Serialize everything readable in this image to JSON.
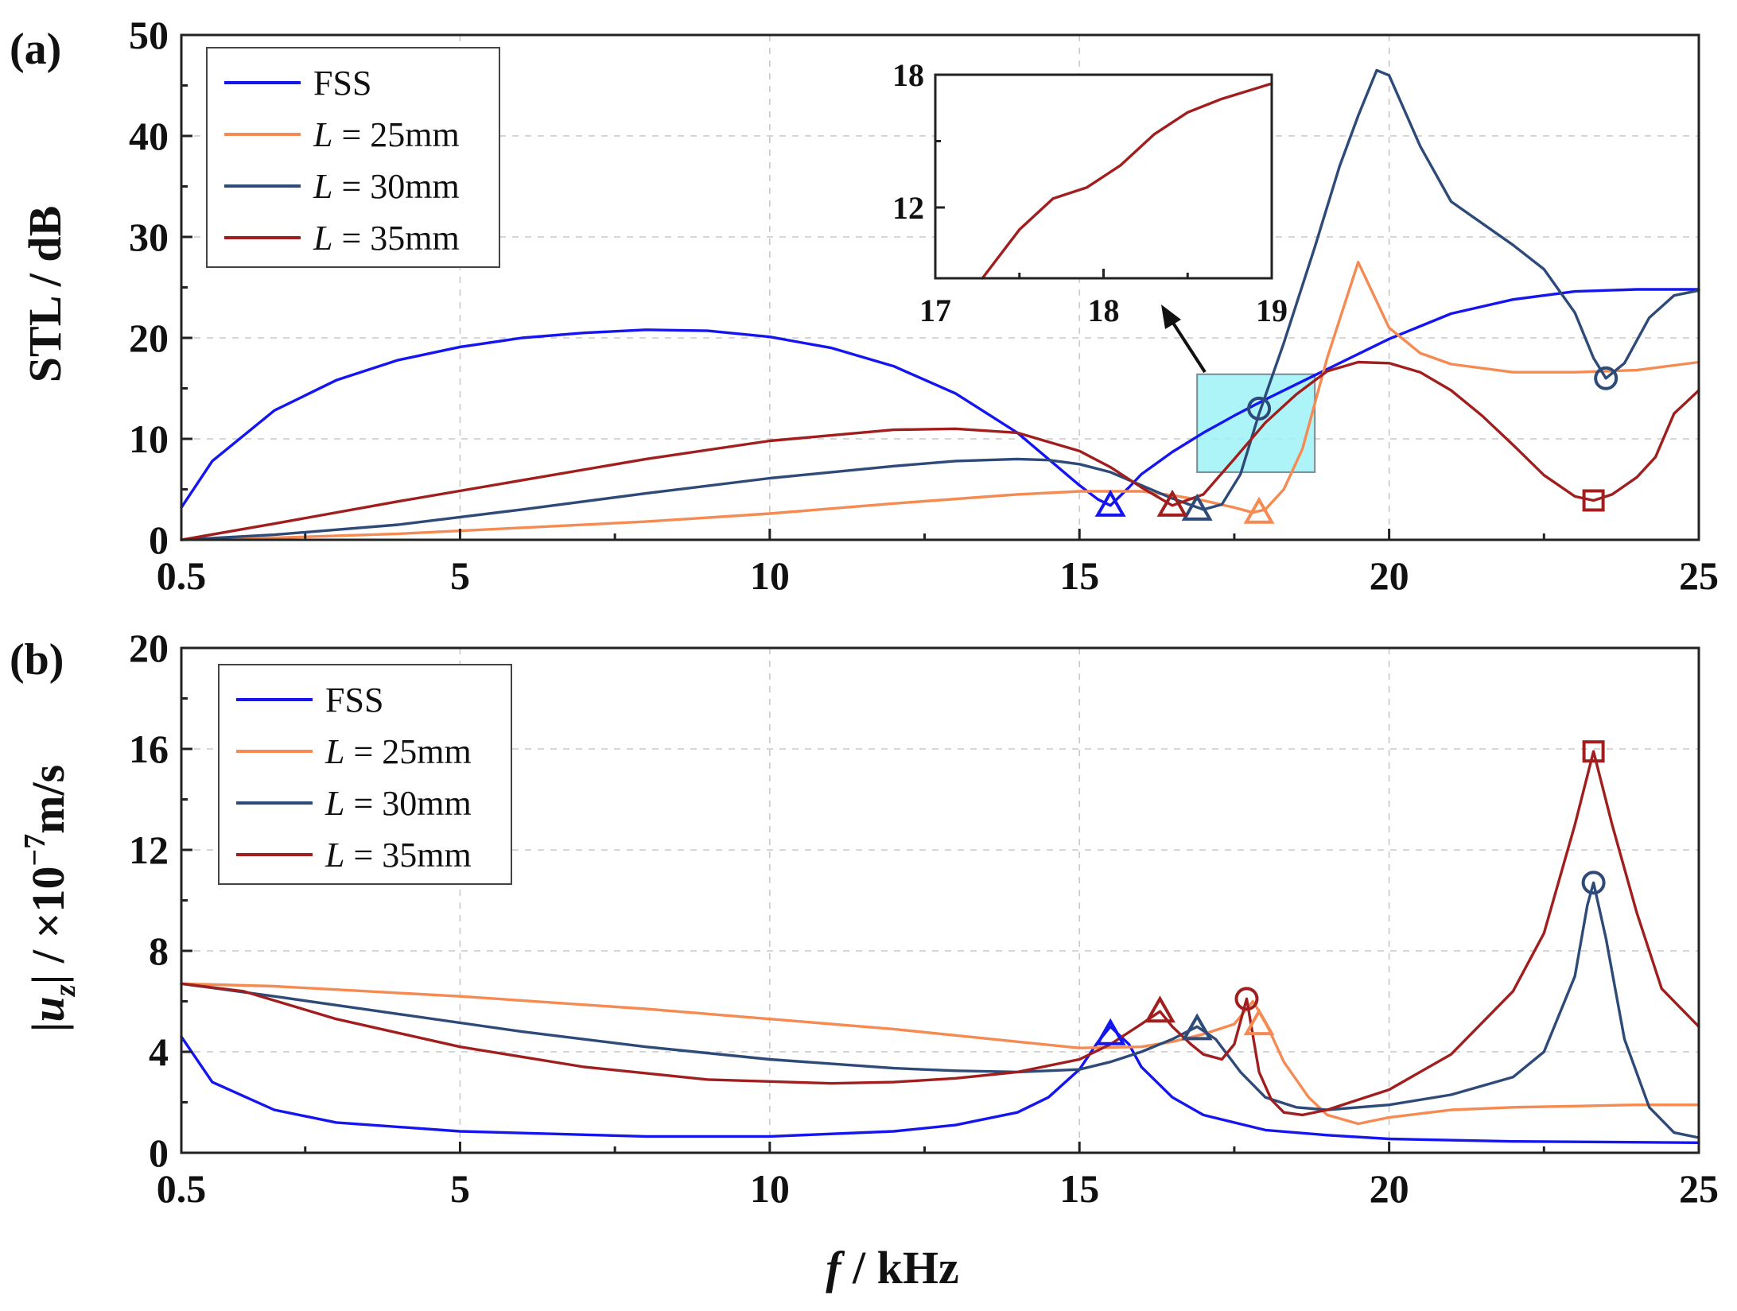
{
  "chart_data": [
    {
      "type": "line",
      "panel_label": "(a)",
      "xlabel": "f / kHz",
      "ylabel": "STL / dB",
      "xlim": [
        0.5,
        25
      ],
      "ylim": [
        0,
        50
      ],
      "x_ticks": [
        0.5,
        5,
        10,
        15,
        20,
        25
      ],
      "y_ticks": [
        0,
        10,
        20,
        30,
        40,
        50
      ],
      "grid": true,
      "legend_position": "top-left",
      "series": [
        {
          "name": "FSS",
          "legend_prefix": "",
          "legend_italic": "",
          "legend_suffix": "FSS",
          "color": "#1515f0",
          "x": [
            0.5,
            1,
            2,
            3,
            4,
            5,
            6,
            7,
            8,
            9,
            10,
            11,
            12,
            13,
            14,
            14.5,
            15,
            15.3,
            15.5,
            15.8,
            16,
            16.5,
            17,
            17.5,
            18,
            19,
            20,
            21,
            22,
            23,
            24,
            25
          ],
          "y": [
            3.2,
            7.8,
            12.8,
            15.8,
            17.8,
            19.1,
            20,
            20.5,
            20.8,
            20.7,
            20.1,
            19,
            17.2,
            14.5,
            10.6,
            8,
            5.4,
            4,
            3.4,
            5.2,
            6.5,
            8.7,
            10.6,
            12.3,
            13.9,
            16.9,
            19.9,
            22.4,
            23.8,
            24.6,
            24.8,
            24.8
          ],
          "markers": [
            {
              "x": 15.5,
              "y": 3.4,
              "shape": "triangle"
            }
          ]
        },
        {
          "name": "L = 25mm",
          "legend_prefix": "",
          "legend_italic": "L",
          "legend_suffix": " = 25mm",
          "color": "#f58a52",
          "x": [
            0.5,
            2,
            4,
            6,
            8,
            10,
            12,
            14,
            15,
            16,
            16.5,
            17,
            17.5,
            17.8,
            18,
            18.3,
            18.6,
            19,
            19.5,
            20,
            20.5,
            21,
            22,
            23,
            24,
            25
          ],
          "y": [
            0,
            0.2,
            0.6,
            1.2,
            1.8,
            2.6,
            3.6,
            4.5,
            4.8,
            4.8,
            4.4,
            3.9,
            3.2,
            2.7,
            3,
            5,
            9,
            18,
            27.5,
            21,
            18.5,
            17.4,
            16.6,
            16.6,
            16.8,
            17.6
          ],
          "markers": [
            {
              "x": 17.9,
              "y": 2.7,
              "shape": "triangle"
            }
          ]
        },
        {
          "name": "L = 30mm",
          "legend_prefix": "",
          "legend_italic": "L",
          "legend_suffix": " = 30mm",
          "color": "#2e4a78",
          "x": [
            0.5,
            2,
            4,
            6,
            8,
            10,
            12,
            13,
            14,
            14.5,
            15,
            15.5,
            16,
            16.5,
            17,
            17.3,
            17.6,
            17.9,
            18.3,
            18.8,
            19.2,
            19.5,
            19.8,
            20,
            20.5,
            21,
            22,
            22.5,
            23,
            23.3,
            23.5,
            23.8,
            24.2,
            24.6,
            25
          ],
          "y": [
            0,
            0.5,
            1.5,
            3,
            4.6,
            6.1,
            7.3,
            7.8,
            8,
            7.9,
            7.5,
            6.7,
            5.4,
            4.1,
            3,
            3.5,
            6.5,
            12.5,
            19.5,
            29,
            37,
            42,
            46.5,
            46,
            39,
            33.5,
            29.2,
            26.8,
            22.5,
            18,
            16,
            17.5,
            22,
            24.2,
            24.7
          ],
          "markers": [
            {
              "x": 17.9,
              "y": 13,
              "shape": "circle"
            },
            {
              "x": 16.9,
              "y": 3,
              "shape": "triangle"
            },
            {
              "x": 23.5,
              "y": 16,
              "shape": "circle"
            }
          ]
        },
        {
          "name": "L = 35mm",
          "legend_prefix": "",
          "legend_italic": "L",
          "legend_suffix": " = 35mm",
          "color": "#a01e1e",
          "x": [
            0.5,
            2,
            4,
            6,
            8,
            10,
            12,
            13,
            14,
            15,
            15.5,
            16,
            16.5,
            17,
            17.5,
            18,
            18.5,
            19,
            19.5,
            20,
            20.5,
            21,
            21.5,
            22,
            22.5,
            23,
            23.3,
            23.6,
            24,
            24.3,
            24.6,
            25
          ],
          "y": [
            0,
            1.6,
            3.8,
            5.9,
            8,
            9.8,
            10.9,
            11,
            10.6,
            8.8,
            7.2,
            5.2,
            3.4,
            4.5,
            8,
            11.6,
            14.4,
            16.7,
            17.6,
            17.5,
            16.6,
            14.8,
            12.3,
            9.4,
            6.4,
            4.3,
            3.9,
            4.5,
            6.2,
            8.2,
            12.5,
            14.8
          ],
          "markers": [
            {
              "x": 16.5,
              "y": 3.4,
              "shape": "triangle"
            },
            {
              "x": 23.3,
              "y": 3.9,
              "shape": "square"
            }
          ]
        }
      ],
      "highlight_box": {
        "x_range": [
          16.9,
          18.8
        ],
        "y_range": [
          6.7,
          16.4
        ]
      },
      "inset": {
        "xlim": [
          17,
          19
        ],
        "ylim": [
          8.8,
          18
        ],
        "x_ticks": [
          17,
          18,
          19
        ],
        "y_ticks": [
          12,
          18
        ],
        "series": [
          {
            "name": "L = 35mm",
            "color": "#a01e1e",
            "x": [
              17.28,
              17.5,
              17.7,
              17.9,
              18.1,
              18.3,
              18.5,
              18.7,
              19
            ],
            "y": [
              8.8,
              11,
              12.4,
              12.9,
              13.9,
              15.3,
              16.3,
              16.9,
              17.6
            ]
          }
        ]
      }
    },
    {
      "type": "line",
      "panel_label": "(b)",
      "xlabel": "f / kHz",
      "ylabel": "|uz| / ×10−7m/s",
      "xlim": [
        0.5,
        25
      ],
      "ylim": [
        0,
        20
      ],
      "x_ticks": [
        0.5,
        5,
        10,
        15,
        20,
        25
      ],
      "y_ticks": [
        0,
        4,
        8,
        12,
        16,
        20
      ],
      "grid": true,
      "legend_position": "top-left",
      "series": [
        {
          "name": "FSS",
          "legend_prefix": "",
          "legend_italic": "",
          "legend_suffix": "FSS",
          "color": "#1515f0",
          "x": [
            0.5,
            1,
            2,
            3,
            5,
            8,
            10,
            12,
            13,
            14,
            14.5,
            15,
            15.3,
            15.5,
            15.8,
            16,
            16.5,
            17,
            18,
            19,
            20,
            22,
            25
          ],
          "y": [
            4.6,
            2.8,
            1.7,
            1.2,
            0.85,
            0.65,
            0.65,
            0.85,
            1.1,
            1.6,
            2.2,
            3.3,
            4.4,
            5,
            4.3,
            3.4,
            2.2,
            1.5,
            0.9,
            0.7,
            0.55,
            0.45,
            0.4
          ],
          "markers": [
            {
              "x": 15.5,
              "y": 4.7,
              "shape": "triangle"
            }
          ]
        },
        {
          "name": "L = 25mm",
          "legend_prefix": "",
          "legend_italic": "L",
          "legend_suffix": " = 25mm",
          "color": "#f58a52",
          "x": [
            0.5,
            2,
            5,
            8,
            10,
            12,
            14,
            15,
            16,
            16.5,
            17,
            17.5,
            17.8,
            18,
            18.3,
            18.7,
            19,
            19.5,
            20,
            21,
            22,
            23,
            24,
            25
          ],
          "y": [
            6.7,
            6.6,
            6.2,
            5.7,
            5.3,
            4.9,
            4.4,
            4.15,
            4.2,
            4.4,
            4.7,
            5.1,
            6,
            5.2,
            3.6,
            2.2,
            1.5,
            1.15,
            1.4,
            1.7,
            1.8,
            1.85,
            1.9,
            1.9
          ],
          "markers": [
            {
              "x": 17.9,
              "y": 5.1,
              "shape": "triangle"
            }
          ]
        },
        {
          "name": "L = 30mm",
          "legend_prefix": "",
          "legend_italic": "L",
          "legend_suffix": " = 30mm",
          "color": "#2e4a78",
          "x": [
            0.5,
            2,
            4,
            6,
            8,
            10,
            12,
            13,
            14,
            15,
            15.5,
            16,
            16.5,
            16.9,
            17.2,
            17.6,
            18,
            18.5,
            19,
            20,
            21,
            22,
            22.5,
            23,
            23.2,
            23.3,
            23.5,
            23.8,
            24.2,
            24.6,
            25
          ],
          "y": [
            6.7,
            6.2,
            5.5,
            4.8,
            4.2,
            3.7,
            3.35,
            3.25,
            3.2,
            3.3,
            3.6,
            4,
            4.5,
            5,
            4.5,
            3.2,
            2.2,
            1.8,
            1.7,
            1.9,
            2.3,
            3,
            4,
            7,
            9.8,
            10.7,
            8.5,
            4.5,
            1.8,
            0.8,
            0.6
          ],
          "markers": [
            {
              "x": 16.9,
              "y": 4.9,
              "shape": "triangle"
            },
            {
              "x": 23.3,
              "y": 10.7,
              "shape": "circle"
            }
          ]
        },
        {
          "name": "L = 35mm",
          "legend_prefix": "",
          "legend_italic": "L",
          "legend_suffix": " = 35mm",
          "color": "#a01e1e",
          "x": [
            0.5,
            1.5,
            3,
            5,
            7,
            9,
            11,
            12,
            13,
            14,
            15,
            15.5,
            16,
            16.3,
            16.5,
            16.8,
            17,
            17.3,
            17.5,
            17.7,
            17.9,
            18.1,
            18.3,
            18.6,
            19,
            20,
            21,
            22,
            22.5,
            23,
            23.3,
            23.6,
            24,
            24.4,
            25
          ],
          "y": [
            6.7,
            6.4,
            5.3,
            4.2,
            3.4,
            2.9,
            2.75,
            2.8,
            2.95,
            3.2,
            3.7,
            4.3,
            5.1,
            5.6,
            5,
            4.3,
            3.9,
            3.7,
            4.3,
            6.1,
            3.2,
            2.1,
            1.6,
            1.5,
            1.7,
            2.5,
            3.9,
            6.4,
            8.7,
            13,
            15.9,
            13,
            9.5,
            6.5,
            5
          ],
          "markers": [
            {
              "x": 16.3,
              "y": 5.6,
              "shape": "triangle"
            },
            {
              "x": 17.7,
              "y": 6.1,
              "shape": "circle"
            },
            {
              "x": 23.3,
              "y": 15.9,
              "shape": "square"
            }
          ]
        }
      ]
    }
  ]
}
